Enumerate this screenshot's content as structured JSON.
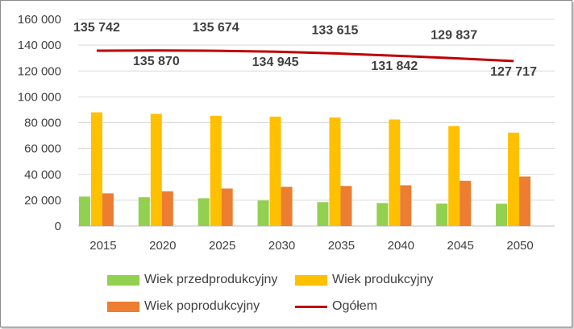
{
  "chart_data": {
    "type": "bar",
    "categories": [
      "2015",
      "2020",
      "2025",
      "2030",
      "2035",
      "2040",
      "2045",
      "2050"
    ],
    "ylim": [
      0,
      160000
    ],
    "yticks": [
      "0",
      "20 000",
      "40 000",
      "60 000",
      "80 000",
      "100 000",
      "120 000",
      "140 000",
      "160 000"
    ],
    "grid": true,
    "legend_position": "bottom",
    "series": [
      {
        "name": "Wiek przedprodukcyjny",
        "type": "bar",
        "color": "#92d050",
        "values": [
          22800,
          22300,
          21500,
          19800,
          18500,
          17800,
          17400,
          17300
        ]
      },
      {
        "name": "Wiek produkcyjny",
        "type": "bar",
        "color": "#ffc000",
        "values": [
          88000,
          86800,
          85400,
          84700,
          84000,
          82500,
          77300,
          72300
        ]
      },
      {
        "name": "Wiek poprodukcyjny",
        "type": "bar",
        "color": "#ed7d31",
        "values": [
          25300,
          26900,
          29000,
          30400,
          31000,
          31500,
          35000,
          38300
        ]
      },
      {
        "name": "Ogółem",
        "type": "line",
        "color": "#c00000",
        "values": [
          135742,
          135870,
          135674,
          134945,
          133615,
          131842,
          129837,
          127717
        ]
      }
    ],
    "data_labels": [
      "135 742",
      "135 870",
      "135 674",
      "134 945",
      "133 615",
      "131 842",
      "129 837",
      "127 717"
    ]
  }
}
